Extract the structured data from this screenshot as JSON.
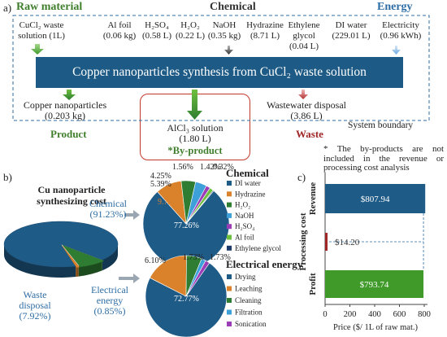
{
  "panel_a": {
    "label": "a)",
    "headers": {
      "raw_material": "Raw material",
      "chemical": "Chemical",
      "energy": "Energy"
    },
    "inputs": [
      {
        "name": "CuCl₂ waste solution (1L)"
      },
      {
        "name": "Al foil",
        "amount": "(0.06 kg)"
      },
      {
        "name": "H₂SO₄",
        "amount": "(0.58 L)"
      },
      {
        "name": "H₂O₂",
        "amount": "(0.22 L)"
      },
      {
        "name": "NaOH",
        "amount": "(0.35 kg)"
      },
      {
        "name": "Hydrazine",
        "amount": "(8.71 L)"
      },
      {
        "name": "Ethylene glycol",
        "amount": "(0.04 L)"
      },
      {
        "name": "DI water",
        "amount": "(229.01 L)"
      },
      {
        "name": "Electricity",
        "amount": "(0.96 kWh)"
      }
    ],
    "process": "Copper nanoparticles synthesis from CuCl₂ waste solution",
    "outputs": {
      "product_name": "Copper nanoparticles",
      "product_amount": "(0.203 kg)",
      "product_label": "Product",
      "byproduct_name": "AlCl₃ solution",
      "byproduct_amount": "(1.80 L)",
      "byproduct_label": "*By-product",
      "waste_name": "Wastewater disposal",
      "waste_amount": "(3.86 L)",
      "waste_label": "Waste"
    },
    "boundary_label": "System boundary"
  },
  "panel_b": {
    "label": "b)",
    "title": "Cu nanoparticle synthesizing cost",
    "main_pie": {
      "slices": [
        {
          "name": "Chemical",
          "pct_text": "(91.23%)",
          "value": 91.23,
          "color": "#1f5b87"
        },
        {
          "name": "Waste disposal",
          "pct_text": "(7.92%)",
          "value": 7.92,
          "color": "#2e7d32"
        },
        {
          "name": "Electrical energy",
          "pct_text": "(0.85%)",
          "value": 0.85,
          "color": "#d9822b"
        }
      ]
    },
    "chemical_pie": {
      "title": "Chemical",
      "slices": [
        {
          "name": "DI water",
          "label": "77.26%",
          "value": 77.26,
          "color": "#1f5b87"
        },
        {
          "name": "Hydrazine",
          "label": "9.79%",
          "value": 9.79,
          "color": "#d9822b"
        },
        {
          "name": "H₂O₂",
          "label": "5.39%",
          "value": 5.39,
          "color": "#2e7d32"
        },
        {
          "name": "NaOH",
          "label": "4.25%",
          "value": 4.25,
          "color": "#3ea0d8"
        },
        {
          "name": "H₂SO₄",
          "label": "1.56%",
          "value": 1.56,
          "color": "#9c3db8"
        },
        {
          "name": "Al foil",
          "label": "1.42%",
          "value": 1.42,
          "color": "#6fbf3f"
        },
        {
          "name": "Ethylene glycol",
          "label": "0.32%",
          "value": 0.32,
          "color": "#1b3a6b"
        }
      ]
    },
    "energy_pie": {
      "title": "Electrical energy",
      "slices": [
        {
          "name": "Drying",
          "label": "72.77%",
          "value": 72.77,
          "color": "#1f5b87"
        },
        {
          "name": "Leaching",
          "label": "17.67%",
          "value": 17.67,
          "color": "#d9822b"
        },
        {
          "name": "Cleaning",
          "label": "6.10%",
          "value": 6.1,
          "color": "#2e7d32"
        },
        {
          "name": "Filtration",
          "label": "1.73%",
          "value": 1.73,
          "color": "#3ea0d8"
        },
        {
          "name": "Sonication",
          "label": "1.73%",
          "value": 1.73,
          "color": "#9c3db8"
        }
      ]
    }
  },
  "panel_c": {
    "label": "c)",
    "note": "* The by-products are not included in the revenue or processing cost analysis",
    "categories": [
      "Revenue",
      "Processing cost",
      "Profit"
    ],
    "values": [
      807.94,
      14.2,
      793.74
    ],
    "value_labels": [
      "$807.94",
      "$14.20",
      "$793.74"
    ],
    "colors": [
      "#1f5b87",
      "#a02727",
      "#3f9a2a"
    ],
    "xticks": [
      "0",
      "200",
      "400",
      "600",
      "800"
    ],
    "xlim": [
      0,
      800
    ],
    "xlabel": "Price ($/ 1L of raw mat.)"
  }
}
